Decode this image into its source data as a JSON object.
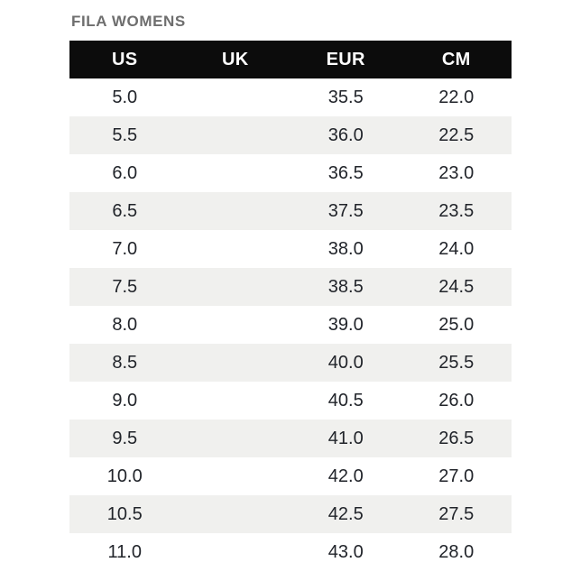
{
  "title": "FILA WOMENS",
  "table": {
    "headers": [
      "US",
      "UK",
      "EUR",
      "CM"
    ],
    "rows": [
      [
        "5.0",
        "",
        "35.5",
        "22.0"
      ],
      [
        "5.5",
        "",
        "36.0",
        "22.5"
      ],
      [
        "6.0",
        "",
        "36.5",
        "23.0"
      ],
      [
        "6.5",
        "",
        "37.5",
        "23.5"
      ],
      [
        "7.0",
        "",
        "38.0",
        "24.0"
      ],
      [
        "7.5",
        "",
        "38.5",
        "24.5"
      ],
      [
        "8.0",
        "",
        "39.0",
        "25.0"
      ],
      [
        "8.5",
        "",
        "40.0",
        "25.5"
      ],
      [
        "9.0",
        "",
        "40.5",
        "26.0"
      ],
      [
        "9.5",
        "",
        "41.0",
        "26.5"
      ],
      [
        "10.0",
        "",
        "42.0",
        "27.0"
      ],
      [
        "10.5",
        "",
        "42.5",
        "27.5"
      ],
      [
        "11.0",
        "",
        "43.0",
        "28.0"
      ]
    ]
  },
  "chart_data": {
    "type": "table",
    "title": "FILA WOMENS",
    "columns": [
      "US",
      "UK",
      "EUR",
      "CM"
    ],
    "rows": [
      {
        "US": "5.0",
        "UK": "",
        "EUR": "35.5",
        "CM": "22.0"
      },
      {
        "US": "5.5",
        "UK": "",
        "EUR": "36.0",
        "CM": "22.5"
      },
      {
        "US": "6.0",
        "UK": "",
        "EUR": "36.5",
        "CM": "23.0"
      },
      {
        "US": "6.5",
        "UK": "",
        "EUR": "37.5",
        "CM": "23.5"
      },
      {
        "US": "7.0",
        "UK": "",
        "EUR": "38.0",
        "CM": "24.0"
      },
      {
        "US": "7.5",
        "UK": "",
        "EUR": "38.5",
        "CM": "24.5"
      },
      {
        "US": "8.0",
        "UK": "",
        "EUR": "39.0",
        "CM": "25.0"
      },
      {
        "US": "8.5",
        "UK": "",
        "EUR": "40.0",
        "CM": "25.5"
      },
      {
        "US": "9.0",
        "UK": "",
        "EUR": "40.5",
        "CM": "26.0"
      },
      {
        "US": "9.5",
        "UK": "",
        "EUR": "41.0",
        "CM": "26.5"
      },
      {
        "US": "10.0",
        "UK": "",
        "EUR": "42.0",
        "CM": "27.0"
      },
      {
        "US": "10.5",
        "UK": "",
        "EUR": "42.5",
        "CM": "27.5"
      },
      {
        "US": "11.0",
        "UK": "",
        "EUR": "43.0",
        "CM": "28.0"
      }
    ],
    "layout_hints": {
      "header_style": "black-bar-white-text",
      "row_striping": "even-rows-light-gray",
      "column_alignment": "center",
      "grid": false
    }
  },
  "colors": {
    "header_bg": "#0c0c0c",
    "header_text": "#ffffff",
    "stripe_bg": "#f0f0ee",
    "row_text": "#21242a",
    "title_text": "#6e6e6e",
    "page_bg": "#ffffff"
  }
}
